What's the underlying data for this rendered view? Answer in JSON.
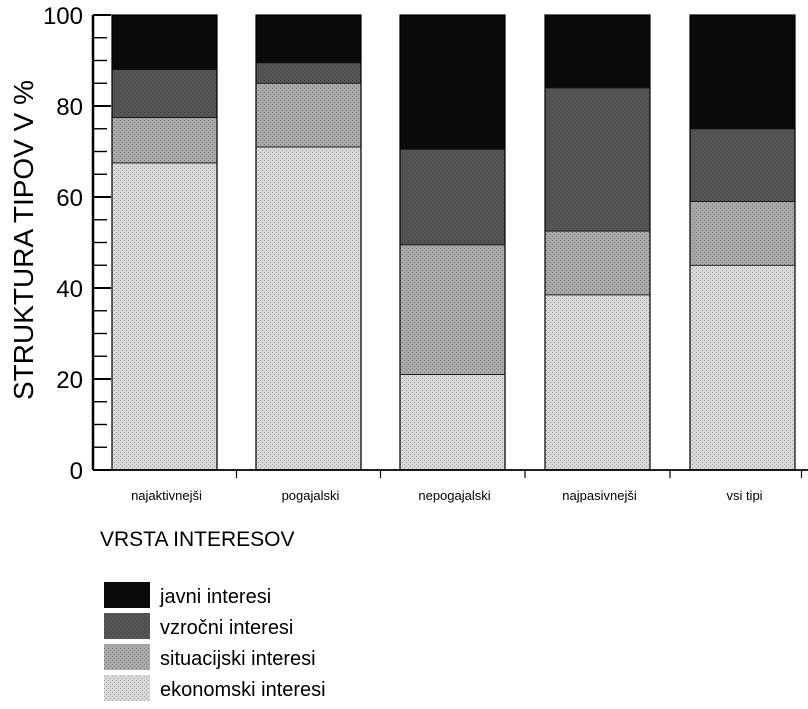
{
  "chart_data": {
    "type": "bar",
    "stacked": true,
    "ylabel": "STRUKTURA TIPOV V %",
    "xlabel": "VRSTA INTERESOV",
    "ylim": [
      0,
      100
    ],
    "yticks": [
      "0",
      "20",
      "40",
      "60",
      "80",
      "100"
    ],
    "categories": [
      "najaktivnejši",
      "pogajalski",
      "nepogajalski",
      "najpasivnejši",
      "vsi tipi"
    ],
    "series": [
      {
        "name": "ekonomski interesi",
        "color": "#d8d8d8",
        "values": [
          67.5,
          71,
          21,
          38.5,
          45
        ]
      },
      {
        "name": "situacijski interesi",
        "color": "#a8a8a8",
        "values": [
          10,
          14,
          28.5,
          14,
          14
        ]
      },
      {
        "name": "vzročni interesi",
        "color": "#555555",
        "values": [
          10.5,
          4.5,
          21,
          31.5,
          16
        ]
      },
      {
        "name": "javni interesi",
        "color": "#0a0a0a",
        "values": [
          12,
          10.5,
          29.5,
          16,
          25
        ]
      }
    ],
    "legend": {
      "position": "bottom-left",
      "order": [
        "javni interesi",
        "vzročni interesi",
        "situacijski interesi",
        "ekonomski interesi"
      ]
    },
    "grid": false
  }
}
